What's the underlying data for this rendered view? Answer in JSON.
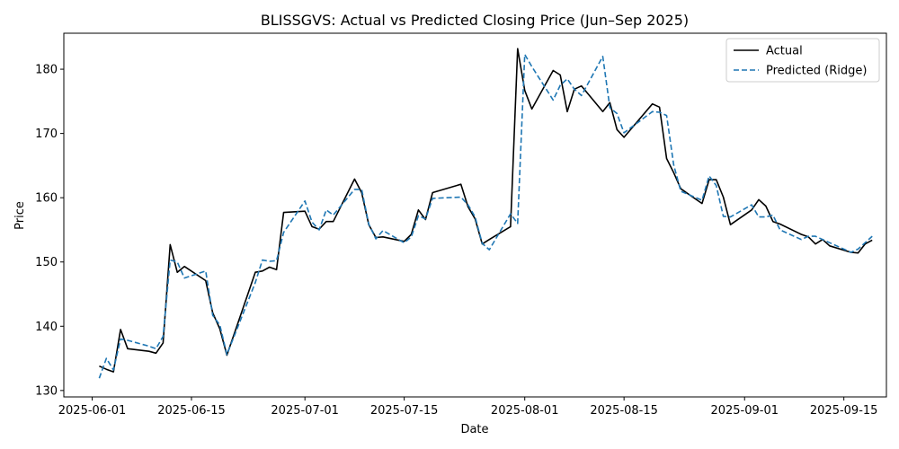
{
  "chart_data": {
    "type": "line",
    "title": "BLISSGVS: Actual vs Predicted Closing Price (Jun–Sep 2025)",
    "xlabel": "Date",
    "ylabel": "Price",
    "x_ticks": [
      "2025-06-01",
      "2025-06-15",
      "2025-07-01",
      "2025-07-15",
      "2025-08-01",
      "2025-08-15",
      "2025-09-01",
      "2025-09-15"
    ],
    "y_ticks": [
      130,
      140,
      150,
      160,
      170,
      180
    ],
    "xlim": [
      "2025-05-28",
      "2025-09-21"
    ],
    "ylim": [
      129,
      185.6
    ],
    "grid": false,
    "legend_position": "top-right",
    "series": [
      {
        "name": "Actual",
        "color": "#000000",
        "style": "solid",
        "points": [
          [
            "2025-06-02",
            133.8
          ],
          [
            "2025-06-03",
            133.3
          ],
          [
            "2025-06-04",
            132.9
          ],
          [
            "2025-06-05",
            139.5
          ],
          [
            "2025-06-06",
            136.5
          ],
          [
            "2025-06-09",
            136.1
          ],
          [
            "2025-06-10",
            135.8
          ],
          [
            "2025-06-11",
            137.4
          ],
          [
            "2025-06-12",
            152.7
          ],
          [
            "2025-06-13",
            148.4
          ],
          [
            "2025-06-14",
            149.3
          ],
          [
            "2025-06-17",
            147.1
          ],
          [
            "2025-06-18",
            142.1
          ],
          [
            "2025-06-19",
            139.6
          ],
          [
            "2025-06-20",
            135.5
          ],
          [
            "2025-06-24",
            148.4
          ],
          [
            "2025-06-25",
            148.6
          ],
          [
            "2025-06-26",
            149.2
          ],
          [
            "2025-06-27",
            148.8
          ],
          [
            "2025-06-28",
            157.7
          ],
          [
            "2025-07-01",
            157.9
          ],
          [
            "2025-07-02",
            155.5
          ],
          [
            "2025-07-03",
            155.1
          ],
          [
            "2025-07-04",
            156.3
          ],
          [
            "2025-07-05",
            156.3
          ],
          [
            "2025-07-08",
            162.9
          ],
          [
            "2025-07-09",
            160.8
          ],
          [
            "2025-07-10",
            155.8
          ],
          [
            "2025-07-11",
            153.8
          ],
          [
            "2025-07-12",
            153.9
          ],
          [
            "2025-07-15",
            153.2
          ],
          [
            "2025-07-16",
            154.3
          ],
          [
            "2025-07-17",
            158.1
          ],
          [
            "2025-07-18",
            156.6
          ],
          [
            "2025-07-19",
            160.8
          ],
          [
            "2025-07-23",
            162.1
          ],
          [
            "2025-07-24",
            158.6
          ],
          [
            "2025-07-25",
            156.7
          ],
          [
            "2025-07-26",
            152.8
          ],
          [
            "2025-07-27",
            153.5
          ],
          [
            "2025-07-30",
            155.5
          ],
          [
            "2025-07-31",
            183.2
          ],
          [
            "2025-08-01",
            176.7
          ],
          [
            "2025-08-02",
            173.8
          ],
          [
            "2025-08-05",
            179.8
          ],
          [
            "2025-08-06",
            179.1
          ],
          [
            "2025-08-07",
            173.4
          ],
          [
            "2025-08-08",
            176.9
          ],
          [
            "2025-08-09",
            177.4
          ],
          [
            "2025-08-12",
            173.4
          ],
          [
            "2025-08-13",
            174.8
          ],
          [
            "2025-08-14",
            170.6
          ],
          [
            "2025-08-15",
            169.4
          ],
          [
            "2025-08-19",
            174.6
          ],
          [
            "2025-08-20",
            174.1
          ],
          [
            "2025-08-21",
            166.1
          ],
          [
            "2025-08-22",
            163.9
          ],
          [
            "2025-08-23",
            161.4
          ],
          [
            "2025-08-26",
            159.1
          ],
          [
            "2025-08-27",
            162.8
          ],
          [
            "2025-08-28",
            162.8
          ],
          [
            "2025-08-29",
            160.1
          ],
          [
            "2025-08-30",
            155.8
          ],
          [
            "2025-09-02",
            158.1
          ],
          [
            "2025-09-03",
            159.7
          ],
          [
            "2025-09-04",
            158.7
          ],
          [
            "2025-09-05",
            156.3
          ],
          [
            "2025-09-06",
            155.9
          ],
          [
            "2025-09-09",
            154.3
          ],
          [
            "2025-09-10",
            153.9
          ],
          [
            "2025-09-11",
            152.8
          ],
          [
            "2025-09-12",
            153.5
          ],
          [
            "2025-09-13",
            152.5
          ],
          [
            "2025-09-16",
            151.5
          ],
          [
            "2025-09-17",
            151.4
          ],
          [
            "2025-09-18",
            152.8
          ],
          [
            "2025-09-19",
            153.4
          ]
        ]
      },
      {
        "name": "Predicted (Ridge)",
        "color": "#1f77b4",
        "style": "dashed",
        "points": [
          [
            "2025-06-02",
            131.9
          ],
          [
            "2025-06-03",
            135.0
          ],
          [
            "2025-06-04",
            133.2
          ],
          [
            "2025-06-05",
            138.0
          ],
          [
            "2025-06-06",
            137.8
          ],
          [
            "2025-06-09",
            136.9
          ],
          [
            "2025-06-10",
            136.5
          ],
          [
            "2025-06-11",
            138.4
          ],
          [
            "2025-06-12",
            150.3
          ],
          [
            "2025-06-13",
            150.0
          ],
          [
            "2025-06-14",
            147.5
          ],
          [
            "2025-06-17",
            148.6
          ],
          [
            "2025-06-18",
            141.7
          ],
          [
            "2025-06-19",
            140.2
          ],
          [
            "2025-06-20",
            135.6
          ],
          [
            "2025-06-24",
            146.8
          ],
          [
            "2025-06-25",
            150.3
          ],
          [
            "2025-06-26",
            150.1
          ],
          [
            "2025-06-27",
            150.2
          ],
          [
            "2025-06-28",
            154.6
          ],
          [
            "2025-07-01",
            159.5
          ],
          [
            "2025-07-02",
            156.2
          ],
          [
            "2025-07-03",
            155.0
          ],
          [
            "2025-07-04",
            158.1
          ],
          [
            "2025-07-05",
            157.3
          ],
          [
            "2025-07-08",
            161.3
          ],
          [
            "2025-07-09",
            161.3
          ],
          [
            "2025-07-10",
            155.9
          ],
          [
            "2025-07-11",
            153.6
          ],
          [
            "2025-07-12",
            154.9
          ],
          [
            "2025-07-15",
            153.0
          ],
          [
            "2025-07-16",
            153.9
          ],
          [
            "2025-07-17",
            157.2
          ],
          [
            "2025-07-18",
            156.7
          ],
          [
            "2025-07-19",
            159.9
          ],
          [
            "2025-07-23",
            160.1
          ],
          [
            "2025-07-24",
            158.9
          ],
          [
            "2025-07-25",
            157.0
          ],
          [
            "2025-07-26",
            152.9
          ],
          [
            "2025-07-27",
            151.9
          ],
          [
            "2025-07-30",
            157.5
          ],
          [
            "2025-07-31",
            156.0
          ],
          [
            "2025-08-01",
            182.3
          ],
          [
            "2025-08-02",
            180.4
          ],
          [
            "2025-08-05",
            175.2
          ],
          [
            "2025-08-06",
            177.5
          ],
          [
            "2025-08-07",
            178.5
          ],
          [
            "2025-08-08",
            176.9
          ],
          [
            "2025-08-09",
            175.9
          ],
          [
            "2025-08-12",
            182.0
          ],
          [
            "2025-08-13",
            174.0
          ],
          [
            "2025-08-14",
            173.1
          ],
          [
            "2025-08-15",
            170.1
          ],
          [
            "2025-08-19",
            173.4
          ],
          [
            "2025-08-20",
            173.3
          ],
          [
            "2025-08-21",
            172.8
          ],
          [
            "2025-08-22",
            165.1
          ],
          [
            "2025-08-23",
            161.0
          ],
          [
            "2025-08-26",
            159.6
          ],
          [
            "2025-08-27",
            163.4
          ],
          [
            "2025-08-28",
            161.9
          ],
          [
            "2025-08-29",
            157.1
          ],
          [
            "2025-08-30",
            157.0
          ],
          [
            "2025-09-02",
            158.9
          ],
          [
            "2025-09-03",
            157.0
          ],
          [
            "2025-09-04",
            157.0
          ],
          [
            "2025-09-05",
            157.3
          ],
          [
            "2025-09-06",
            155.0
          ],
          [
            "2025-09-09",
            153.5
          ],
          [
            "2025-09-10",
            154.0
          ],
          [
            "2025-09-11",
            154.0
          ],
          [
            "2025-09-12",
            153.5
          ],
          [
            "2025-09-13",
            153.0
          ],
          [
            "2025-09-16",
            151.5
          ],
          [
            "2025-09-17",
            152.0
          ],
          [
            "2025-09-18",
            153.0
          ],
          [
            "2025-09-19",
            154.0
          ]
        ]
      }
    ]
  }
}
